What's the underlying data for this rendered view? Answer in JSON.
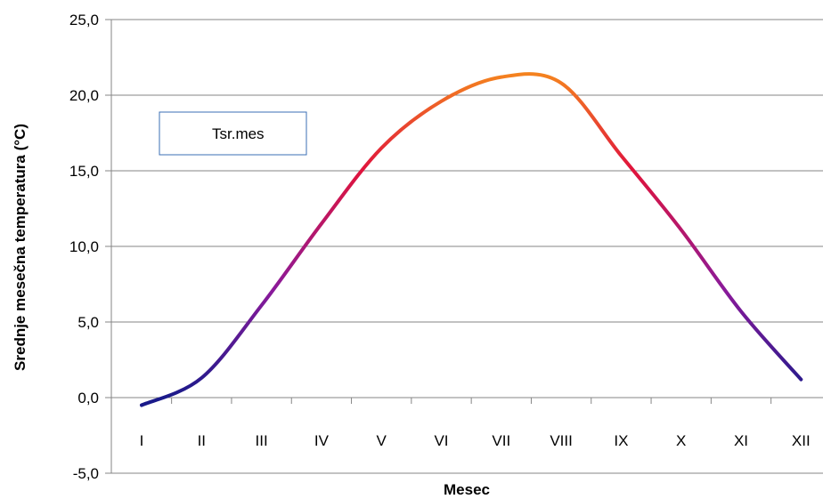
{
  "chart_data": {
    "type": "line",
    "title": "",
    "xlabel": "Mesec",
    "ylabel": "Srednje mesečna temperatura (°C)",
    "ylim": [
      -5,
      25
    ],
    "ytick_step": 5,
    "ytick_labels": [
      "-5,0",
      "0,0",
      "5,0",
      "10,0",
      "15,0",
      "20,0",
      "25,0"
    ],
    "categories": [
      "I",
      "II",
      "III",
      "IV",
      "V",
      "VI",
      "VII",
      "VIII",
      "IX",
      "X",
      "XI",
      "XII"
    ],
    "grid": "horizontal",
    "legend_position": "upper-left",
    "series": [
      {
        "name": "Tsr.mes",
        "values": [
          -0.5,
          1.3,
          6.1,
          11.5,
          16.5,
          19.6,
          21.2,
          20.8,
          16.0,
          11.1,
          5.7,
          1.2
        ],
        "gradient": [
          "#1a1a8a",
          "#8a1a9a",
          "#e0143c",
          "#f5861e"
        ]
      }
    ]
  }
}
